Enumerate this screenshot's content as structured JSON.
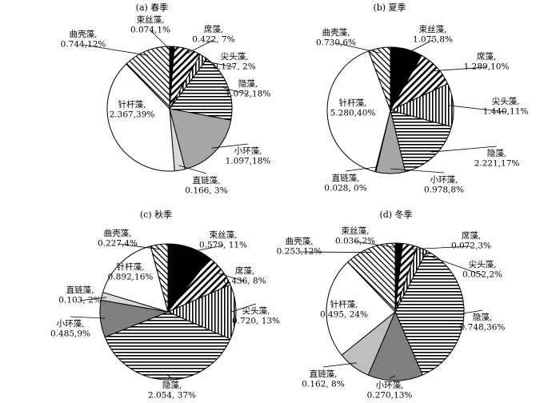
{
  "chart_data": [
    {
      "type": "pie",
      "title": "(a) 春季",
      "slices": [
        {
          "name": "束丝藻",
          "value": 0.074,
          "percent": 1,
          "label": [
            "束丝藻,",
            "0.074,1%"
          ],
          "fill": "solid-black"
        },
        {
          "name": "席藻",
          "value": 0.422,
          "percent": 7,
          "label": [
            "席藻,",
            "0.422, 7%"
          ],
          "fill": "diagonal-hatch"
        },
        {
          "name": "尖头藻",
          "value": 0.127,
          "percent": 2,
          "label": [
            "尖头藻,",
            "0.127, 2%"
          ],
          "fill": "vertical-lines"
        },
        {
          "name": "隐藻",
          "value": 1.072,
          "percent": 18,
          "label": [
            "隐藻,",
            "1.072,18%"
          ],
          "fill": "horizontal-lines"
        },
        {
          "name": "小环藻",
          "value": 1.097,
          "percent": 18,
          "label": [
            "小环藻,",
            "1.097,18%"
          ],
          "fill": "#a6a6a6"
        },
        {
          "name": "直链藻",
          "value": 0.166,
          "percent": 3,
          "label": [
            "直链藻,",
            "0.166, 3%"
          ],
          "fill": "#d9d9d9"
        },
        {
          "name": "针杆藻",
          "value": 2.367,
          "percent": 39,
          "label": [
            "针杆藻,",
            "2.367,39%"
          ],
          "fill": "#ffffff"
        },
        {
          "name": "曲壳藻",
          "value": 0.744,
          "percent": 12,
          "label": [
            "曲壳藻,",
            "0.744,12%"
          ],
          "fill": "back-diagonal-hatch"
        }
      ]
    },
    {
      "type": "pie",
      "title": "(b) 夏季",
      "slices": [
        {
          "name": "束丝藻",
          "value": 1.075,
          "percent": 8,
          "label": [
            "束丝藻,",
            "1.075,8%"
          ],
          "fill": "solid-black"
        },
        {
          "name": "席藻",
          "value": 1.289,
          "percent": 10,
          "label": [
            "席藻,",
            "1.289,10%"
          ],
          "fill": "diagonal-hatch"
        },
        {
          "name": "尖头藻",
          "value": 1.44,
          "percent": 11,
          "label": [
            "尖头藻,",
            "1.440,11%"
          ],
          "fill": "vertical-lines"
        },
        {
          "name": "隐藻",
          "value": 2.221,
          "percent": 17,
          "label": [
            "隐藻,",
            "2.221,17%"
          ],
          "fill": "horizontal-lines"
        },
        {
          "name": "小环藻",
          "value": 0.978,
          "percent": 8,
          "label": [
            "小环藻,",
            "0.978,8%"
          ],
          "fill": "#a6a6a6"
        },
        {
          "name": "直链藻",
          "value": 0.028,
          "percent": 0,
          "label": [
            "直链藻,",
            "0.028, 0%"
          ],
          "fill": "#d9d9d9"
        },
        {
          "name": "针杆藻",
          "value": 5.28,
          "percent": 40,
          "label": [
            "针杆藻,",
            "5.280,40%"
          ],
          "fill": "#ffffff"
        },
        {
          "name": "曲壳藻",
          "value": 0.73,
          "percent": 6,
          "label": [
            "曲壳藻,",
            "0.730,6%"
          ],
          "fill": "back-diagonal-hatch"
        }
      ]
    },
    {
      "type": "pie",
      "title": "(c) 秋季",
      "slices": [
        {
          "name": "束丝藻",
          "value": 0.579,
          "percent": 11,
          "label": [
            "束丝藻,",
            "0.579, 11%"
          ],
          "fill": "solid-black"
        },
        {
          "name": "席藻",
          "value": 0.436,
          "percent": 8,
          "label": [
            "席藻,",
            "0.436, 8%"
          ],
          "fill": "diagonal-hatch"
        },
        {
          "name": "尖头藻",
          "value": 0.72,
          "percent": 13,
          "label": [
            "尖头藻,",
            "0.720, 13%"
          ],
          "fill": "vertical-lines"
        },
        {
          "name": "隐藻",
          "value": 2.054,
          "percent": 37,
          "label": [
            "隐藻,",
            "2.054, 37%"
          ],
          "fill": "horizontal-lines"
        },
        {
          "name": "小环藻",
          "value": 0.485,
          "percent": 9,
          "label": [
            "小环藻,",
            "0.485,9%"
          ],
          "fill": "#7f7f7f"
        },
        {
          "name": "直链藻",
          "value": 0.103,
          "percent": 2,
          "label": [
            "直链藻,",
            "0.103, 2%"
          ],
          "fill": "#d9d9d9"
        },
        {
          "name": "针杆藻",
          "value": 0.892,
          "percent": 16,
          "label": [
            "针杆藻,",
            "0.892,16%"
          ],
          "fill": "#ffffff"
        },
        {
          "name": "曲壳藻",
          "value": 0.227,
          "percent": 4,
          "label": [
            "曲壳藻,",
            "0.227,4%"
          ],
          "fill": "back-diagonal-hatch"
        }
      ]
    },
    {
      "type": "pie",
      "title": "(d) 冬季",
      "slices": [
        {
          "name": "束丝藻",
          "value": 0.036,
          "percent": 2,
          "label": [
            "束丝藻,",
            "0.036,2%"
          ],
          "fill": "solid-black"
        },
        {
          "name": "席藻",
          "value": 0.072,
          "percent": 3,
          "label": [
            "席藻,",
            "0.072,3%"
          ],
          "fill": "diagonal-hatch"
        },
        {
          "name": "尖头藻",
          "value": 0.052,
          "percent": 2,
          "label": [
            "尖头藻,",
            "0.052,2%"
          ],
          "fill": "vertical-lines"
        },
        {
          "name": "隐藻",
          "value": 0.748,
          "percent": 36,
          "label": [
            "隐藻,",
            "0.748,36%"
          ],
          "fill": "horizontal-lines"
        },
        {
          "name": "小环藻",
          "value": 0.27,
          "percent": 13,
          "label": [
            "小环藻,",
            "0.270,13%"
          ],
          "fill": "#7f7f7f"
        },
        {
          "name": "直链藻",
          "value": 0.162,
          "percent": 8,
          "label": [
            "直链藻,",
            "0.162, 8%"
          ],
          "fill": "#bfbfbf"
        },
        {
          "name": "针杆藻",
          "value": 0.495,
          "percent": 24,
          "label": [
            "针杆藻,",
            "0.495, 24%"
          ],
          "fill": "#ffffff"
        },
        {
          "name": "曲壳藻",
          "value": 0.253,
          "percent": 12,
          "label": [
            "曲壳藻,",
            "0.253,12%"
          ],
          "fill": "back-diagonal-hatch"
        }
      ]
    }
  ]
}
